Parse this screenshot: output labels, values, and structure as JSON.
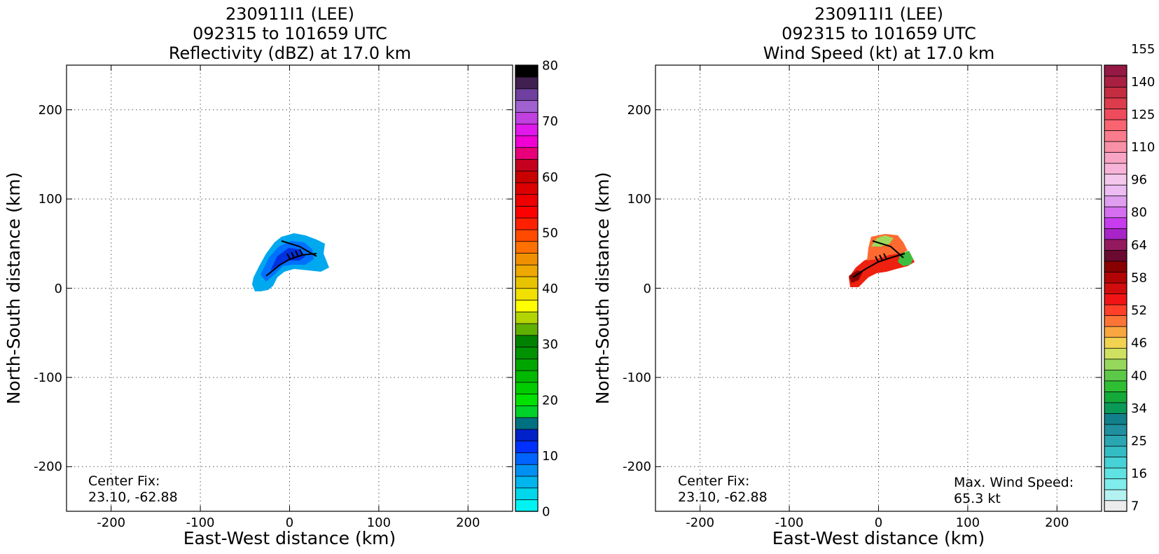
{
  "chart_data": [
    {
      "type": "heatmap",
      "title_lines": [
        "230911I1 (LEE)",
        "092315 to 101659 UTC",
        "Reflectivity (dBZ) at 17.0 km"
      ],
      "xlabel": "East-West distance (km)",
      "ylabel": "North-South distance (km)",
      "xlim": [
        -250,
        250
      ],
      "ylim": [
        -250,
        250
      ],
      "xticks": [
        -200,
        -100,
        0,
        100,
        200
      ],
      "yticks": [
        -200,
        -100,
        0,
        100,
        200
      ],
      "grid": true,
      "colorbar": {
        "range": [
          0,
          80
        ],
        "tick_values": [
          0,
          10,
          20,
          30,
          40,
          50,
          60,
          70,
          80
        ],
        "tick_labels": [
          "0",
          "10",
          "20",
          "30",
          "40",
          "50",
          "60",
          "70",
          "80"
        ],
        "colors": [
          "#00f2f2",
          "#00d7ea",
          "#00b5ee",
          "#0090f2",
          "#0064ff",
          "#0030ff",
          "#0020c8",
          "#007080",
          "#00d22a",
          "#00e100",
          "#00cc00",
          "#00b800",
          "#00a500",
          "#009200",
          "#008200",
          "#60b000",
          "#b2d400",
          "#ffff00",
          "#f2e000",
          "#e8c300",
          "#eea800",
          "#f09000",
          "#ff7000",
          "#ff4a00",
          "#ff2000",
          "#ff0000",
          "#ee0000",
          "#dc0000",
          "#c80000",
          "#c4001e",
          "#e8007a",
          "#f000d2",
          "#e018ec",
          "#c040e0",
          "#a060d0",
          "#7040a0",
          "#402050",
          "#000000"
        ]
      },
      "annotations": {
        "center_fix_label": "Center Fix:",
        "center_fix_value": "23.10, -62.88"
      }
    },
    {
      "type": "heatmap",
      "title_lines": [
        "230911I1 (LEE)",
        "092315 to 101659 UTC",
        "Wind Speed (kt) at 17.0 km"
      ],
      "xlabel": "East-West distance (km)",
      "ylabel": "North-South distance (km)",
      "xlim": [
        -250,
        250
      ],
      "ylim": [
        -250,
        250
      ],
      "xticks": [
        -200,
        -100,
        0,
        100,
        200
      ],
      "yticks": [
        -200,
        -100,
        0,
        100,
        200
      ],
      "grid": true,
      "colorbar": {
        "tick_labels": [
          "7",
          "16",
          "25",
          "34",
          "40",
          "46",
          "52",
          "58",
          "64",
          "80",
          "96",
          "110",
          "125",
          "140",
          "155"
        ],
        "tick_bins": [
          0,
          3,
          6,
          9,
          12,
          15,
          18,
          21,
          24,
          27,
          30,
          33,
          36,
          39,
          42
        ],
        "colors": [
          "#ececec",
          "#b4f2f2",
          "#80ecec",
          "#5ee2e2",
          "#46d2d6",
          "#34bcc4",
          "#2aa6b2",
          "#20909e",
          "#12808a",
          "#0a9a58",
          "#14aa3a",
          "#2ebe32",
          "#5cc848",
          "#96d85c",
          "#d0e060",
          "#f2d250",
          "#f8a640",
          "#fc7436",
          "#ff4028",
          "#f21414",
          "#d20c0c",
          "#b20404",
          "#880000",
          "#6a0a30",
          "#941a60",
          "#a824c8",
          "#c83cf0",
          "#d470f0",
          "#e09ef0",
          "#ecbcf2",
          "#f4c8ec",
          "#f8b4d8",
          "#f8a4c4",
          "#f890a8",
          "#fa7c8c",
          "#f86470",
          "#ee4c5c",
          "#dc3c4c",
          "#c42c40",
          "#aa2042",
          "#961844"
        ]
      },
      "annotations": {
        "center_fix_label": "Center Fix:",
        "center_fix_value": "23.10, -62.88",
        "max_wind_label": "Max. Wind Speed:",
        "max_wind_value": "65.3 kt"
      }
    }
  ]
}
